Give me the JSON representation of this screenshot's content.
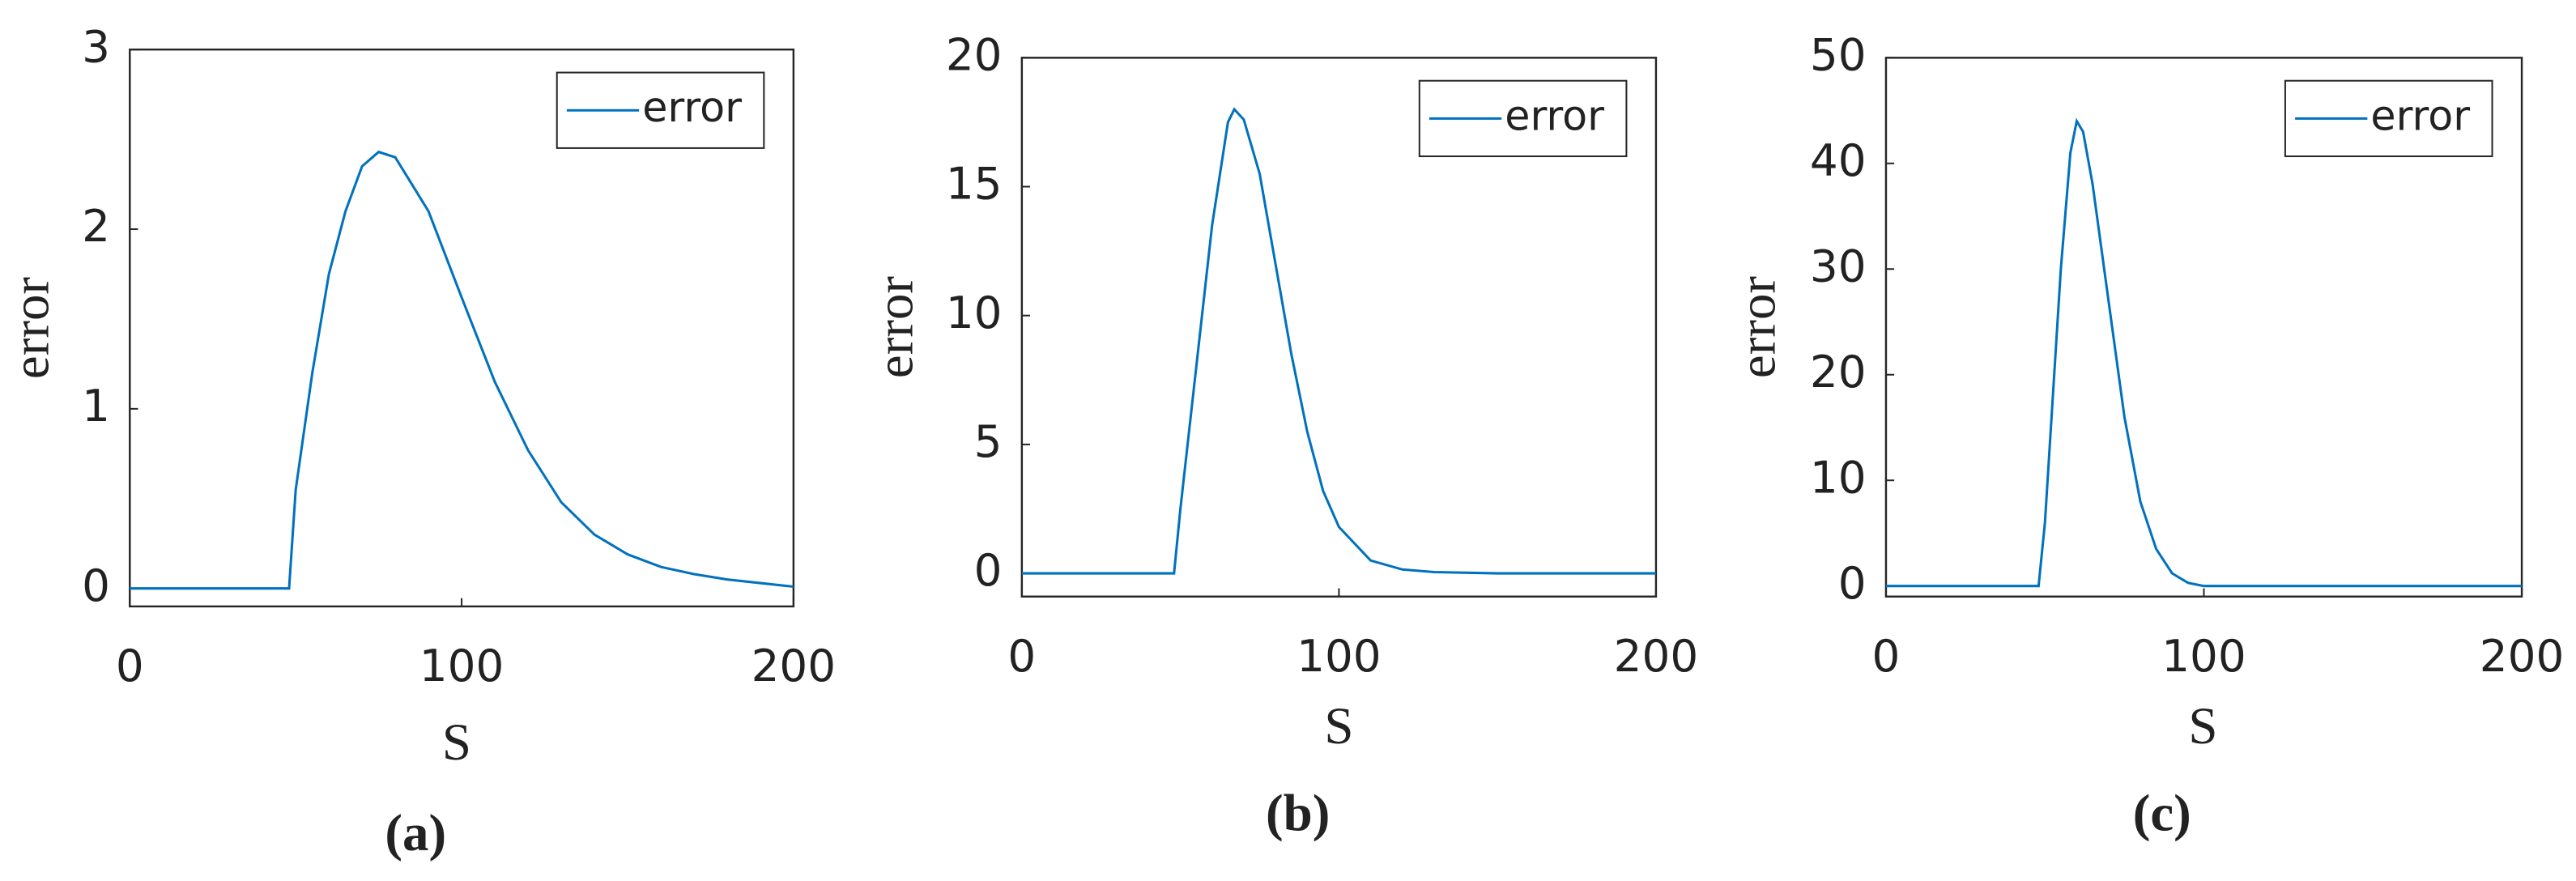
{
  "chart_data": [
    {
      "type": "line",
      "panel_label": "(a)",
      "xlabel": "S",
      "ylabel": "error",
      "xlim": [
        0,
        200
      ],
      "ylim": [
        -0.1,
        3
      ],
      "xticks": [
        0,
        100,
        200
      ],
      "yticks": [
        0,
        1,
        2,
        3
      ],
      "legend": "upper right",
      "x": [
        0,
        48,
        50,
        55,
        60,
        65,
        70,
        75,
        80,
        90,
        100,
        110,
        120,
        130,
        140,
        150,
        160,
        170,
        180,
        190,
        200
      ],
      "series": [
        {
          "name": "error",
          "color": "#0072bd",
          "values": [
            0,
            0,
            0.55,
            1.2,
            1.75,
            2.1,
            2.35,
            2.43,
            2.4,
            2.1,
            1.62,
            1.15,
            0.77,
            0.48,
            0.3,
            0.19,
            0.12,
            0.08,
            0.05,
            0.03,
            0.01
          ]
        }
      ]
    },
    {
      "type": "line",
      "panel_label": "(b)",
      "xlabel": "S",
      "ylabel": "error",
      "xlim": [
        0,
        200
      ],
      "ylim": [
        -0.9,
        20
      ],
      "xticks": [
        0,
        100,
        200
      ],
      "yticks": [
        0,
        5,
        10,
        15,
        20
      ],
      "legend": "upper right",
      "x": [
        0,
        48,
        50,
        55,
        60,
        65,
        67,
        70,
        75,
        80,
        85,
        90,
        95,
        100,
        110,
        120,
        130,
        150,
        200
      ],
      "series": [
        {
          "name": "error",
          "color": "#0072bd",
          "values": [
            0,
            0,
            2.5,
            8,
            13.5,
            17.5,
            18,
            17.6,
            15.5,
            12,
            8.5,
            5.5,
            3.2,
            1.8,
            0.5,
            0.15,
            0.05,
            0,
            0
          ]
        }
      ]
    },
    {
      "type": "line",
      "panel_label": "(c)",
      "xlabel": "S",
      "ylabel": "error",
      "xlim": [
        0,
        200
      ],
      "ylim": [
        -1,
        50
      ],
      "xticks": [
        0,
        100,
        200
      ],
      "yticks": [
        0,
        10,
        20,
        30,
        40,
        50
      ],
      "legend": "upper right",
      "x": [
        0,
        48,
        50,
        55,
        58,
        60,
        62,
        65,
        70,
        75,
        80,
        85,
        90,
        95,
        100,
        200
      ],
      "series": [
        {
          "name": "error",
          "color": "#0072bd",
          "values": [
            0,
            0,
            6,
            30,
            41,
            44,
            43,
            38,
            27,
            16,
            8,
            3.5,
            1.2,
            0.3,
            0,
            0
          ]
        }
      ]
    }
  ]
}
